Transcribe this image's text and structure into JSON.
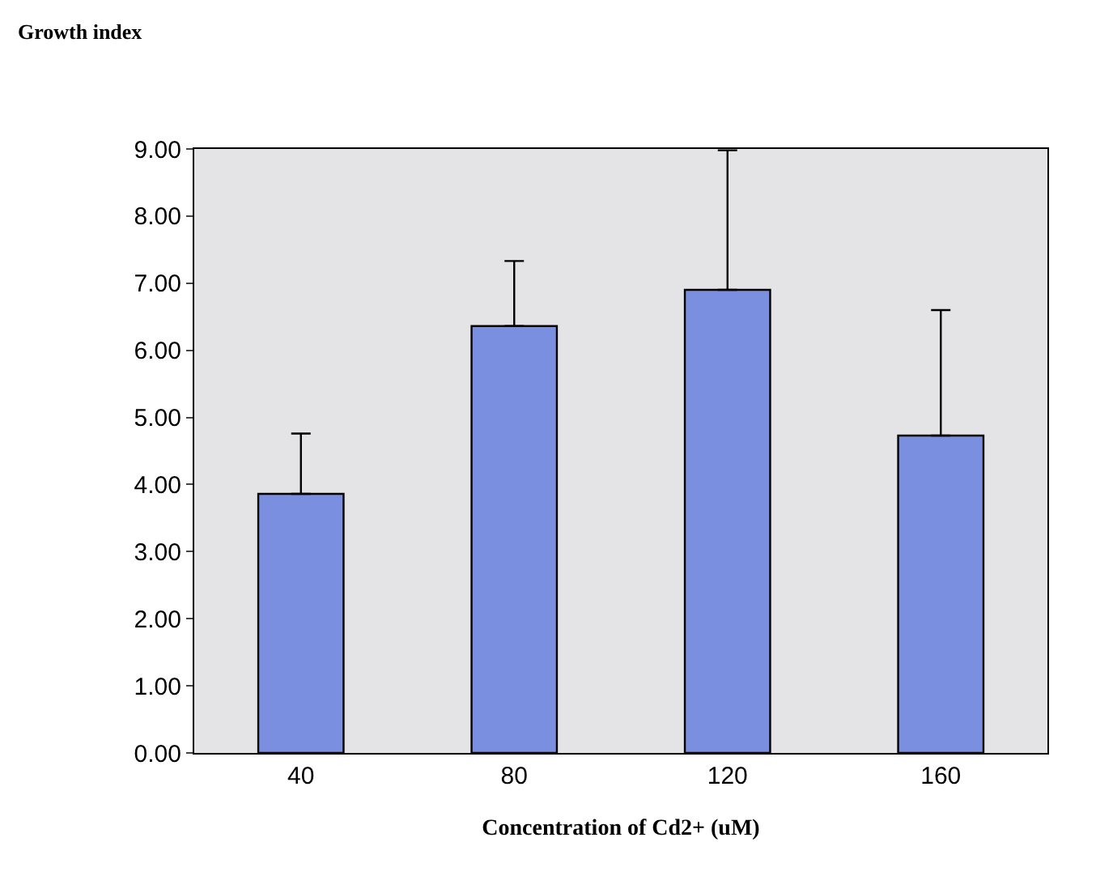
{
  "chart_data": {
    "type": "bar",
    "ylabel": "Growth index",
    "xlabel": "Concentration of Cd2+ (uM)",
    "categories": [
      "40",
      "80",
      "120",
      "160"
    ],
    "values": [
      3.86,
      6.36,
      6.9,
      4.73
    ],
    "errors": [
      [
        3.86,
        4.76
      ],
      [
        6.36,
        7.33
      ],
      [
        6.9,
        8.98
      ],
      [
        4.73,
        6.6
      ]
    ],
    "color": "#7b8fe0",
    "ylim": [
      0,
      9
    ],
    "yticks": [
      {
        "value": 0,
        "label": "0.00"
      },
      {
        "value": 1,
        "label": "1.00"
      },
      {
        "value": 2,
        "label": "2.00"
      },
      {
        "value": 3,
        "label": "3.00"
      },
      {
        "value": 4,
        "label": "4.00"
      },
      {
        "value": 5,
        "label": "5.00"
      },
      {
        "value": 6,
        "label": "6.00"
      },
      {
        "value": 7,
        "label": "7.00"
      },
      {
        "value": 8,
        "label": "8.00"
      },
      {
        "value": 9,
        "label": "9.00"
      }
    ],
    "grid": false
  }
}
